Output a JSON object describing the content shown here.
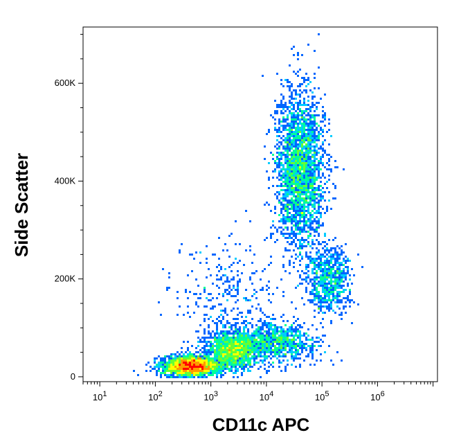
{
  "chart_data": {
    "type": "scatter",
    "title": "",
    "xlabel": "CD11c APC",
    "ylabel": "Side Scatter",
    "x_scale": "log",
    "xlim": [
      5,
      12000000
    ],
    "ylim": [
      -10000,
      715000
    ],
    "x_ticks": [
      {
        "value": 10,
        "base": "10",
        "exp": "1"
      },
      {
        "value": 100,
        "base": "10",
        "exp": "2"
      },
      {
        "value": 1000,
        "base": "10",
        "exp": "3"
      },
      {
        "value": 10000,
        "base": "10",
        "exp": "4"
      },
      {
        "value": 100000,
        "base": "10",
        "exp": "5"
      },
      {
        "value": 1000000,
        "base": "10",
        "exp": "6"
      }
    ],
    "y_ticks": [
      {
        "value": 0,
        "label": "0"
      },
      {
        "value": 200000,
        "label": "200K"
      },
      {
        "value": 400000,
        "label": "400K"
      },
      {
        "value": 600000,
        "label": "600K"
      }
    ],
    "grid": false,
    "legend": "none",
    "colormap": [
      "#0000cc",
      "#0066ff",
      "#00ccff",
      "#00ff99",
      "#66ff33",
      "#ffff00",
      "#ff9900",
      "#ff0000"
    ],
    "populations": [
      {
        "x": 450,
        "y": 22000,
        "x_spread_decades": 0.25,
        "y_spread": 10000,
        "count": 2600
      },
      {
        "x": 2500,
        "y": 55000,
        "x_spread_decades": 0.22,
        "y_spread": 18000,
        "count": 1400
      },
      {
        "x": 40000,
        "y": 420000,
        "x_spread_decades": 0.22,
        "y_spread": 80000,
        "count": 2600
      },
      {
        "x": 130000,
        "y": 200000,
        "x_spread_decades": 0.2,
        "y_spread": 32000,
        "count": 700
      },
      {
        "x": 15000,
        "y": 70000,
        "x_spread_decades": 0.35,
        "y_spread": 20000,
        "count": 900
      },
      {
        "x": 2000,
        "y": 140000,
        "x_spread_decades": 0.5,
        "y_spread": 70000,
        "count": 400
      }
    ]
  }
}
